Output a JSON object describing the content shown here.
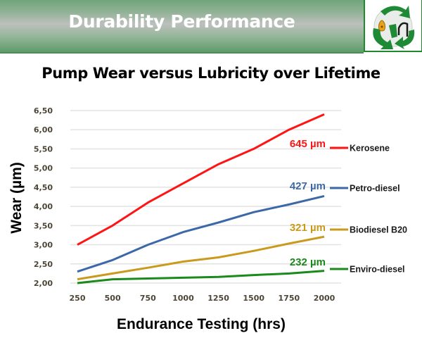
{
  "header": {
    "title": "Durability Performance",
    "logo_icon": "recycle-fuel-drop-logo-icon"
  },
  "chart_data": {
    "type": "line",
    "title": "Pump Wear versus Lubricity over Lifetime",
    "xlabel": "Endurance Testing (hrs)",
    "ylabel": "Wear (µm)",
    "x": [
      250,
      500,
      750,
      1000,
      1250,
      1500,
      1750,
      2000
    ],
    "x_tick_labels": [
      "250",
      "500",
      "750",
      "1000",
      "1250",
      "1500",
      "1750",
      "2000"
    ],
    "ylim": [
      2.0,
      6.5
    ],
    "y_ticks": [
      2.0,
      2.5,
      3.0,
      3.5,
      4.0,
      4.5,
      5.0,
      5.5,
      6.0,
      6.5
    ],
    "y_tick_labels": [
      "2,00",
      "2,50",
      "3,00",
      "3,50",
      "4,00",
      "4,50",
      "5,00",
      "5,50",
      "6,00",
      "6,50"
    ],
    "grid": true,
    "legend_placement": "right",
    "series": [
      {
        "name": "Kerosene",
        "color": "#ff1414",
        "end_label": "645 µm",
        "values": [
          3.0,
          3.5,
          4.1,
          4.6,
          5.1,
          5.5,
          6.0,
          6.4
        ]
      },
      {
        "name": "Petro-diesel",
        "color": "#3d68a8",
        "end_label": "427 µm",
        "values": [
          2.3,
          2.6,
          3.0,
          3.33,
          3.58,
          3.85,
          4.05,
          4.27
        ]
      },
      {
        "name": "Biodiesel B20",
        "color": "#c99a1c",
        "end_label": "321 µm",
        "values": [
          2.1,
          2.25,
          2.4,
          2.56,
          2.67,
          2.84,
          3.03,
          3.21
        ]
      },
      {
        "name": "Enviro-diesel",
        "color": "#1a8a1a",
        "end_label": "232 µm",
        "values": [
          2.0,
          2.1,
          2.12,
          2.14,
          2.16,
          2.21,
          2.25,
          2.32
        ]
      }
    ]
  }
}
